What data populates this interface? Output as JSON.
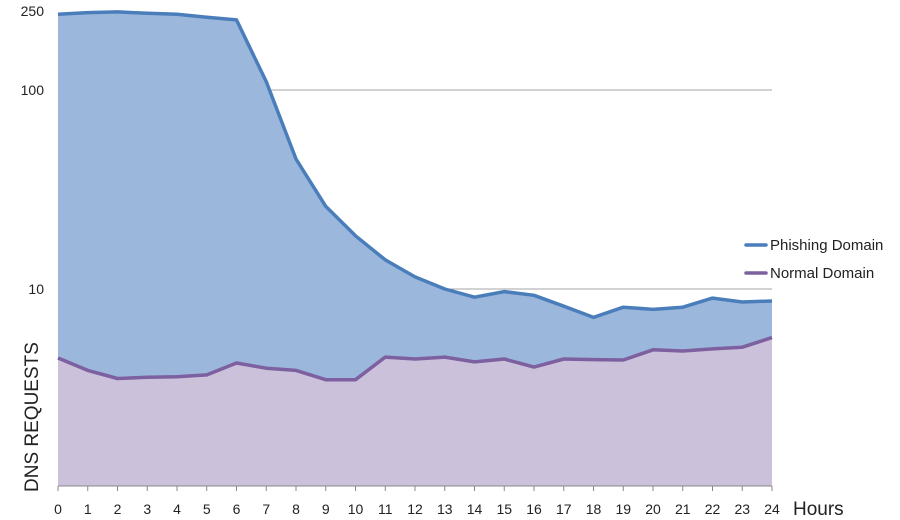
{
  "chart_data": {
    "type": "area",
    "title": "",
    "xlabel": "Hours",
    "ylabel": "DNS REQUESTS",
    "y_scale": "log",
    "ylim": [
      1,
      250
    ],
    "y_ticks": [
      {
        "value": 250,
        "label": "250"
      },
      {
        "value": 100,
        "label": "100"
      },
      {
        "value": 10,
        "label": "10"
      }
    ],
    "grid": "horizontal",
    "legend_position": "right",
    "x": [
      "0",
      "1",
      "2",
      "3",
      "4",
      "5",
      "6",
      "7",
      "8",
      "9",
      "10",
      "11",
      "12",
      "13",
      "14",
      "15",
      "16",
      "17",
      "18",
      "19",
      "20",
      "21",
      "22",
      "23",
      "24"
    ],
    "series": [
      {
        "name": "Phishing Domain",
        "line_color": "#4a7ebb",
        "fill_color": "#9cb7dc",
        "values": [
          240,
          245,
          247,
          243,
          240,
          232,
          225,
          110,
          45,
          26,
          18.5,
          14,
          11.5,
          10,
          9.1,
          9.7,
          9.3,
          8.2,
          7.2,
          8.1,
          7.9,
          8.1,
          9.0,
          8.6,
          8.7
        ]
      },
      {
        "name": "Normal Domain",
        "line_color": "#7d60a0",
        "fill_color": "#ccc1da",
        "values": [
          4.5,
          3.9,
          3.55,
          3.6,
          3.62,
          3.7,
          4.25,
          4.0,
          3.9,
          3.5,
          3.5,
          4.55,
          4.45,
          4.55,
          4.3,
          4.45,
          4.05,
          4.45,
          4.42,
          4.4,
          4.95,
          4.88,
          5.0,
          5.1,
          5.7
        ]
      }
    ]
  }
}
